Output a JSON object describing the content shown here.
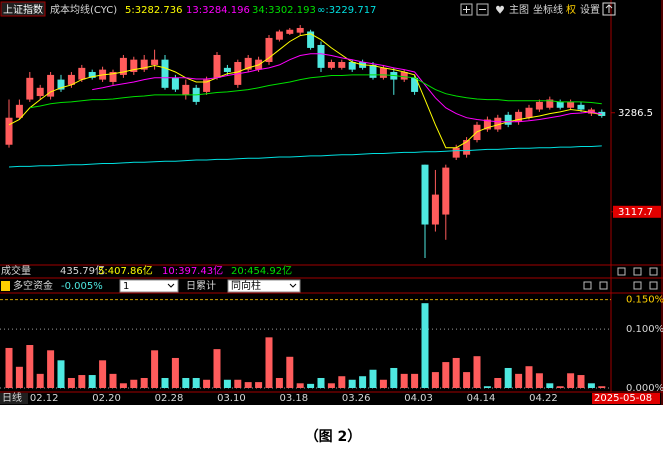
{
  "header": {
    "index_name": "上证指数",
    "indicator": "成本均线(CYC)",
    "main_button": "主图",
    "coord_button": "坐标线",
    "rights_button": "权",
    "settings_button": "设置"
  },
  "volume_bar": {
    "label": "成交量",
    "total": "435.79亿",
    "ma5": "5:407.86亿",
    "ma10": "10:397.43亿",
    "ma20": "20:454.92亿"
  },
  "controls": {
    "period": "1",
    "mode": "日累计",
    "style": "同向柱"
  },
  "axis_footer": {
    "period": "日线",
    "cursor_date": "2025-05-08"
  },
  "caption": "（图 2）",
  "chart_data": [
    {
      "type": "candlestick",
      "categories": [
        null,
        null,
        null,
        "02.12",
        null,
        null,
        null,
        null,
        null,
        "02.20",
        null,
        null,
        null,
        null,
        null,
        "02.28",
        null,
        null,
        null,
        null,
        null,
        "03.10",
        null,
        null,
        null,
        null,
        null,
        "03.18",
        null,
        null,
        null,
        null,
        null,
        "03.26",
        null,
        null,
        null,
        null,
        null,
        "04.03",
        null,
        null,
        null,
        null,
        null,
        "04.14",
        null,
        null,
        null,
        null,
        null,
        "04.22",
        null,
        null,
        null,
        null,
        null,
        null
      ],
      "open": [
        3232,
        3278,
        3309,
        3315,
        3314,
        3343,
        3334,
        3343,
        3356,
        3343,
        3339,
        3351,
        3356,
        3360,
        3368,
        3377,
        3346,
        3317,
        3329,
        3322,
        3346,
        3363,
        3334,
        3360,
        3360,
        3373,
        3411,
        3421,
        3423,
        3425,
        3402,
        3363,
        3363,
        3373,
        3373,
        3368,
        3346,
        3356,
        3343,
        3346,
        3198,
        3096,
        3113,
        3210,
        3215,
        3240,
        3258,
        3258,
        3283,
        3271,
        3278,
        3292,
        3295,
        3305,
        3295,
        3300,
        3285,
        3288
      ],
      "high": [
        3309,
        3309,
        3356,
        3334,
        3356,
        3351,
        3356,
        3368,
        3360,
        3365,
        3360,
        3385,
        3382,
        3385,
        3394,
        3385,
        3351,
        3343,
        3334,
        3348,
        3390,
        3368,
        3377,
        3385,
        3382,
        3419,
        3428,
        3431,
        3436,
        3428,
        3408,
        3377,
        3377,
        3377,
        3377,
        3373,
        3368,
        3363,
        3360,
        3351,
        3198,
        3189,
        3198,
        3232,
        3245,
        3271,
        3280,
        3283,
        3288,
        3292,
        3300,
        3309,
        3314,
        3309,
        3309,
        3305,
        3295,
        3292
      ],
      "low": [
        3227,
        3275,
        3305,
        3309,
        3309,
        3322,
        3329,
        3339,
        3343,
        3339,
        3334,
        3346,
        3351,
        3356,
        3360,
        3326,
        3322,
        3309,
        3300,
        3317,
        3343,
        3351,
        3329,
        3356,
        3356,
        3368,
        3408,
        3419,
        3419,
        3394,
        3356,
        3360,
        3360,
        3356,
        3360,
        3343,
        3343,
        3317,
        3339,
        3317,
        3039,
        3084,
        3070,
        3206,
        3210,
        3236,
        3254,
        3254,
        3262,
        3266,
        3275,
        3288,
        3292,
        3292,
        3292,
        3288,
        3281,
        3278
      ],
      "close": [
        3278,
        3300,
        3346,
        3329,
        3351,
        3326,
        3351,
        3363,
        3346,
        3360,
        3356,
        3380,
        3377,
        3377,
        3377,
        3329,
        3326,
        3334,
        3305,
        3343,
        3385,
        3356,
        3373,
        3380,
        3377,
        3414,
        3425,
        3428,
        3431,
        3397,
        3363,
        3373,
        3373,
        3360,
        3363,
        3346,
        3363,
        3343,
        3356,
        3322,
        3096,
        3147,
        3193,
        3227,
        3240,
        3266,
        3275,
        3278,
        3266,
        3288,
        3295,
        3305,
        3309,
        3295,
        3305,
        3292,
        3292,
        3281
      ],
      "up_color": "#ff5c5c",
      "down_color": "#4ee8e0",
      "series": [
        {
          "name": "5:3282.736",
          "color": "#ffff00",
          "values": [
            3266,
            3275,
            3295,
            3309,
            3322,
            3329,
            3334,
            3343,
            3348,
            3351,
            3353,
            3356,
            3360,
            3363,
            3367,
            3363,
            3356,
            3346,
            3339,
            3339,
            3346,
            3353,
            3356,
            3363,
            3368,
            3380,
            3394,
            3408,
            3418,
            3421,
            3411,
            3397,
            3385,
            3373,
            3368,
            3367,
            3363,
            3360,
            3356,
            3351,
            3309,
            3266,
            3227,
            3227,
            3237,
            3254,
            3261,
            3266,
            3271,
            3275,
            3278,
            3281,
            3285,
            3288,
            3292,
            3290,
            3287,
            3283
          ]
        },
        {
          "name": "13:3284.196",
          "color": "#ff00ff",
          "values": [
            null,
            null,
            null,
            null,
            null,
            null,
            null,
            null,
            3326,
            3329,
            3333,
            3336,
            3339,
            3343,
            3346,
            3346,
            3346,
            3346,
            3344,
            3344,
            3346,
            3350,
            3353,
            3356,
            3360,
            3363,
            3368,
            3377,
            3384,
            3387,
            3387,
            3384,
            3380,
            3377,
            3373,
            3370,
            3367,
            3363,
            3360,
            3356,
            3334,
            3312,
            3295,
            3285,
            3278,
            3275,
            3273,
            3271,
            3271,
            3271,
            3273,
            3275,
            3278,
            3281,
            3285,
            3286,
            3288,
            3284
          ]
        },
        {
          "name": "34:3302.193",
          "color": "#00e000",
          "values": [
            null,
            null,
            3295,
            3298,
            3302,
            3304,
            3305,
            3307,
            3309,
            3309,
            3310,
            3312,
            3314,
            3315,
            3317,
            3317,
            3317,
            3317,
            3317,
            3319,
            3321,
            3322,
            3324,
            3326,
            3329,
            3333,
            3336,
            3339,
            3343,
            3346,
            3348,
            3350,
            3350,
            3351,
            3351,
            3351,
            3351,
            3350,
            3348,
            3346,
            3336,
            3326,
            3319,
            3315,
            3312,
            3310,
            3309,
            3309,
            3307,
            3307,
            3307,
            3307,
            3307,
            3305,
            3305,
            3305,
            3304,
            3302
          ]
        },
        {
          "name": "∞:3229.717",
          "color": "#00e0e0",
          "values": [
            3194,
            3195,
            3195,
            3196,
            3196,
            3197,
            3198,
            3198,
            3199,
            3200,
            3200,
            3201,
            3202,
            3202,
            3203,
            3204,
            3204,
            3205,
            3206,
            3206,
            3207,
            3207,
            3208,
            3209,
            3209,
            3210,
            3211,
            3211,
            3212,
            3213,
            3213,
            3214,
            3215,
            3215,
            3216,
            3217,
            3217,
            3218,
            3219,
            3219,
            3220,
            3220,
            3221,
            3222,
            3222,
            3223,
            3224,
            3224,
            3225,
            3226,
            3226,
            3227,
            3227,
            3228,
            3228,
            3229,
            3229,
            3230
          ]
        }
      ],
      "ylim": [
        3027,
        3448
      ],
      "yticks": [
        3286.5,
        3117.7
      ]
    },
    {
      "type": "bar",
      "title": "多空资金",
      "summary": "-0.005%",
      "values": [
        0.068,
        0.036,
        0.073,
        0.024,
        0.064,
        0.047,
        0.017,
        0.022,
        0.022,
        0.047,
        0.024,
        0.008,
        0.014,
        0.017,
        0.064,
        0.017,
        0.051,
        0.017,
        0.017,
        0.014,
        0.066,
        0.014,
        0.014,
        0.01,
        0.01,
        0.086,
        0.017,
        0.053,
        0.008,
        0.007,
        0.017,
        0.008,
        0.02,
        0.014,
        0.02,
        0.031,
        0.014,
        0.034,
        0.024,
        0.024,
        0.144,
        0.027,
        0.044,
        0.051,
        0.027,
        0.054,
        0.003,
        0.017,
        0.034,
        0.024,
        0.037,
        0.025,
        0.008,
        0.003,
        0.025,
        0.022,
        0.008,
        0.003
      ],
      "colors": [
        "#ff5c5c",
        "#ff5c5c",
        "#ff5c5c",
        "#ff5c5c",
        "#ff5c5c",
        "#4ee8e0",
        "#ff5c5c",
        "#ff5c5c",
        "#4ee8e0",
        "#ff5c5c",
        "#ff5c5c",
        "#ff5c5c",
        "#ff5c5c",
        "#ff5c5c",
        "#ff5c5c",
        "#4ee8e0",
        "#ff5c5c",
        "#4ee8e0",
        "#4ee8e0",
        "#ff5c5c",
        "#ff5c5c",
        "#4ee8e0",
        "#ff5c5c",
        "#ff5c5c",
        "#ff5c5c",
        "#ff5c5c",
        "#ff5c5c",
        "#ff5c5c",
        "#ff5c5c",
        "#4ee8e0",
        "#4ee8e0",
        "#ff5c5c",
        "#ff5c5c",
        "#4ee8e0",
        "#4ee8e0",
        "#4ee8e0",
        "#ff5c5c",
        "#4ee8e0",
        "#ff5c5c",
        "#ff5c5c",
        "#4ee8e0",
        "#ff5c5c",
        "#ff5c5c",
        "#ff5c5c",
        "#ff5c5c",
        "#ff5c5c",
        "#4ee8e0",
        "#ff5c5c",
        "#4ee8e0",
        "#ff5c5c",
        "#ff5c5c",
        "#ff5c5c",
        "#4ee8e0",
        "#ff5c5c",
        "#ff5c5c",
        "#ff5c5c",
        "#4ee8e0",
        "#ff5c5c"
      ],
      "ylim": [
        0,
        0.163
      ],
      "yticks": [
        {
          "value": 0.15,
          "label": "0.150%"
        },
        {
          "value": 0.1,
          "label": "0.100%"
        },
        {
          "value": 0,
          "label": "0.000%"
        }
      ]
    }
  ]
}
